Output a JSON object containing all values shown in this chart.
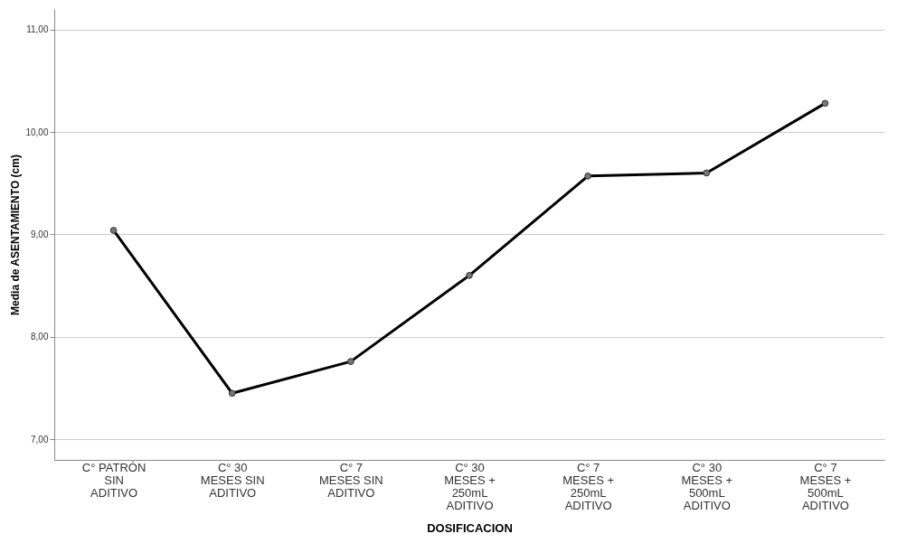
{
  "chart_data": {
    "type": "line",
    "xlabel": "DOSIFICACION",
    "ylabel": "Media de ASENTAMIENTO (cm)",
    "categories": [
      "C° PATRÓN\nSIN\nADITIVO",
      "C° 30\nMESES SIN\nADITIVO",
      "C° 7\nMESES SIN\nADITIVO",
      "C° 30\nMESES +\n250mL\nADITIVO",
      "C° 7\nMESES +\n250mL\nADITIVO",
      "C° 30\nMESES +\n500mL\nADITIVO",
      "C° 7\nMESES +\n500mL\nADITIVO"
    ],
    "series": [
      {
        "color": "#000000",
        "values": [
          9.04,
          7.45,
          7.76,
          8.6,
          9.57,
          9.6,
          10.28
        ]
      }
    ],
    "ylim": [
      6.8,
      11.2
    ],
    "yticks": [
      {
        "value": 7,
        "label": "7,00"
      },
      {
        "value": 8,
        "label": "8,00"
      },
      {
        "value": 9,
        "label": "9,00"
      },
      {
        "value": 10,
        "label": "10,00"
      },
      {
        "value": 11,
        "label": "11,00"
      }
    ],
    "grid": "y",
    "marker": "circle",
    "line_style": "solid"
  }
}
